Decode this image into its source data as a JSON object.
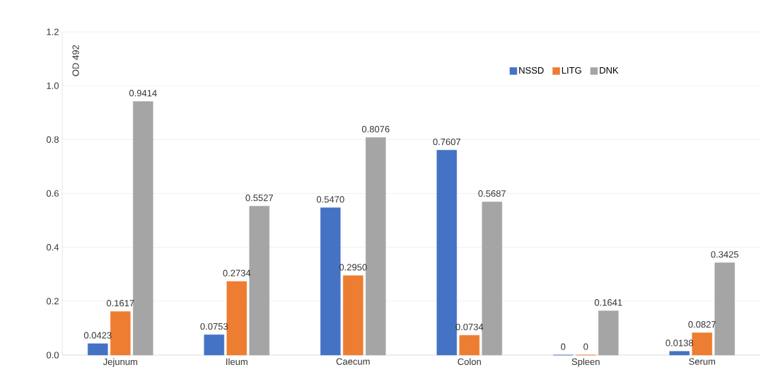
{
  "chart_data": {
    "type": "bar",
    "ylabel": "OD 492",
    "categories": [
      "Jejunum",
      "Ileum",
      "Caecum",
      "Colon",
      "Spleen",
      "Serum"
    ],
    "series": [
      {
        "name": "NSSD",
        "color": "#4472c4",
        "values": [
          0.0423,
          0.0753,
          0.547,
          0.7607,
          0,
          0.0138
        ],
        "value_labels": [
          "0.0423",
          "0.0753",
          "0.5470",
          "0.7607",
          "0",
          "0.0138"
        ]
      },
      {
        "name": "LITG",
        "color": "#ed7d31",
        "values": [
          0.1617,
          0.2734,
          0.295,
          0.0734,
          0,
          0.0827
        ],
        "value_labels": [
          "0.1617",
          "0.2734",
          "0.2950",
          "0.0734",
          "0",
          "0.0827"
        ]
      },
      {
        "name": "DNK",
        "color": "#a5a5a5",
        "values": [
          0.9414,
          0.5527,
          0.8076,
          0.5687,
          0.1641,
          0.3425
        ],
        "value_labels": [
          "0.9414",
          "0.5527",
          "0.8076",
          "0.5687",
          "0.1641",
          "0.3425"
        ]
      }
    ],
    "ylim": [
      0,
      1.2
    ],
    "yticks": [
      {
        "value": 0,
        "label": "0.0"
      },
      {
        "value": 0.2,
        "label": "0.2"
      },
      {
        "value": 0.4,
        "label": "0.4"
      },
      {
        "value": 0.6,
        "label": "0.6"
      },
      {
        "value": 0.8,
        "label": "0.8"
      },
      {
        "value": 1.0,
        "label": "1.0"
      },
      {
        "value": 1.2,
        "label": "1.2"
      }
    ],
    "grid": "y",
    "legend": "top right"
  }
}
